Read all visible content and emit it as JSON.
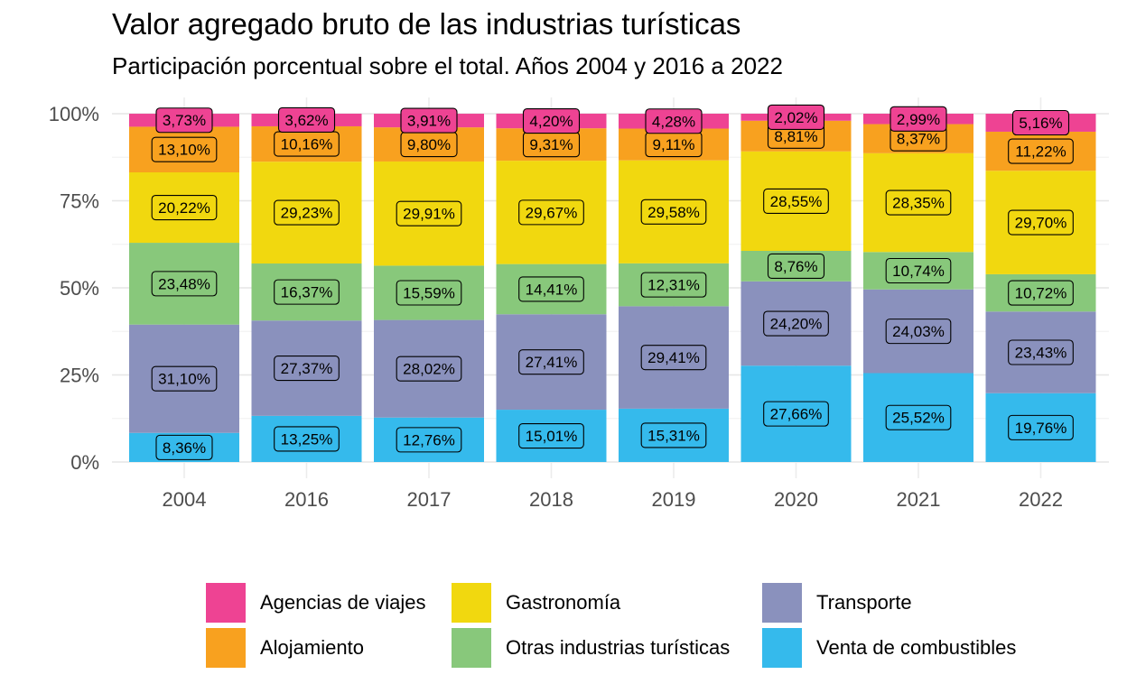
{
  "chart_data": {
    "type": "bar",
    "stacked": true,
    "title": "Valor agregado bruto de las industrias turísticas",
    "subtitle": "Participación porcentual sobre el total. Años 2004 y 2016 a 2022",
    "categories": [
      "2004",
      "2016",
      "2017",
      "2018",
      "2019",
      "2020",
      "2021",
      "2022"
    ],
    "yticks": [
      "0%",
      "25%",
      "50%",
      "75%",
      "100%"
    ],
    "ylim": [
      0,
      100
    ],
    "grid": true,
    "legend_position": "bottom",
    "series": [
      {
        "name": "Venta de combustibles",
        "color": "#35BAEC",
        "values": [
          8.36,
          13.25,
          12.76,
          15.01,
          15.31,
          27.66,
          25.52,
          19.76
        ],
        "labels": [
          "8,36%",
          "13,25%",
          "12,76%",
          "15,01%",
          "15,31%",
          "27,66%",
          "25,52%",
          "19,76%"
        ]
      },
      {
        "name": "Transporte",
        "color": "#8A91BD",
        "values": [
          31.1,
          27.37,
          28.02,
          27.41,
          29.41,
          24.2,
          24.03,
          23.43
        ],
        "labels": [
          "31,10%",
          "27,37%",
          "28,02%",
          "27,41%",
          "29,41%",
          "24,20%",
          "24,03%",
          "23,43%"
        ]
      },
      {
        "name": "Otras industrias turísticas",
        "color": "#88C87B",
        "values": [
          23.48,
          16.37,
          15.59,
          14.41,
          12.31,
          8.76,
          10.74,
          10.72
        ],
        "labels": [
          "23,48%",
          "16,37%",
          "15,59%",
          "14,41%",
          "12,31%",
          "8,76%",
          "10,74%",
          "10,72%"
        ]
      },
      {
        "name": "Gastronomía",
        "color": "#F1D80F",
        "values": [
          20.22,
          29.23,
          29.91,
          29.67,
          29.58,
          28.55,
          28.35,
          29.7
        ],
        "labels": [
          "20,22%",
          "29,23%",
          "29,91%",
          "29,67%",
          "29,58%",
          "28,55%",
          "28,35%",
          "29,70%"
        ]
      },
      {
        "name": "Alojamiento",
        "color": "#F8A11F",
        "values": [
          13.1,
          10.16,
          9.8,
          9.31,
          9.11,
          8.81,
          8.37,
          11.22
        ],
        "labels": [
          "13,10%",
          "10,16%",
          "9,80%",
          "9,31%",
          "9,11%",
          "8,81%",
          "8,37%",
          "11,22%"
        ]
      },
      {
        "name": "Agencias de viajes",
        "color": "#EE4393",
        "values": [
          3.73,
          3.62,
          3.91,
          4.2,
          4.28,
          2.02,
          2.99,
          5.16
        ],
        "labels": [
          "3,73%",
          "3,62%",
          "3,91%",
          "4,20%",
          "4,28%",
          "2,02%",
          "2,99%",
          "5,16%"
        ]
      }
    ],
    "legend": [
      {
        "name": "Agencias de viajes",
        "color": "#EE4393"
      },
      {
        "name": "Alojamiento",
        "color": "#F8A11F"
      },
      {
        "name": "Gastronomía",
        "color": "#F1D80F"
      },
      {
        "name": "Otras industrias turísticas",
        "color": "#88C87B"
      },
      {
        "name": "Transporte",
        "color": "#8A91BD"
      },
      {
        "name": "Venta de combustibles",
        "color": "#35BAEC"
      }
    ]
  }
}
